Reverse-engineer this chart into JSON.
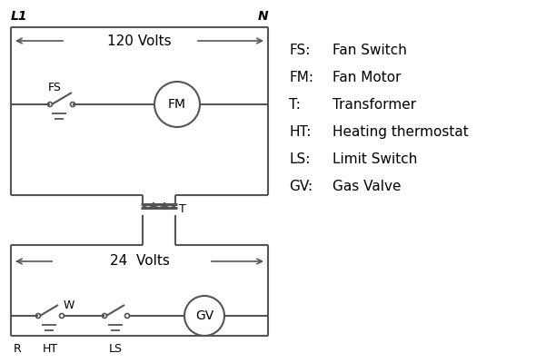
{
  "background_color": "#ffffff",
  "line_color": "#555555",
  "text_color": "#000000",
  "legend_items": [
    [
      "FS:",
      "Fan Switch"
    ],
    [
      "FM:",
      "Fan Motor"
    ],
    [
      "T:",
      "Transformer"
    ],
    [
      "HT:",
      "Heating thermostat"
    ],
    [
      "LS:",
      "Limit Switch"
    ],
    [
      "GV:",
      "Gas Valve"
    ]
  ],
  "label_L1": "L1",
  "label_N": "N",
  "label_120V": "120 Volts",
  "label_24V": "24  Volts",
  "label_T": "T",
  "label_FS": "FS",
  "label_FM": "FM",
  "label_GV": "GV",
  "label_R": "R",
  "label_W": "W",
  "label_HT": "HT",
  "label_LS": "LS"
}
